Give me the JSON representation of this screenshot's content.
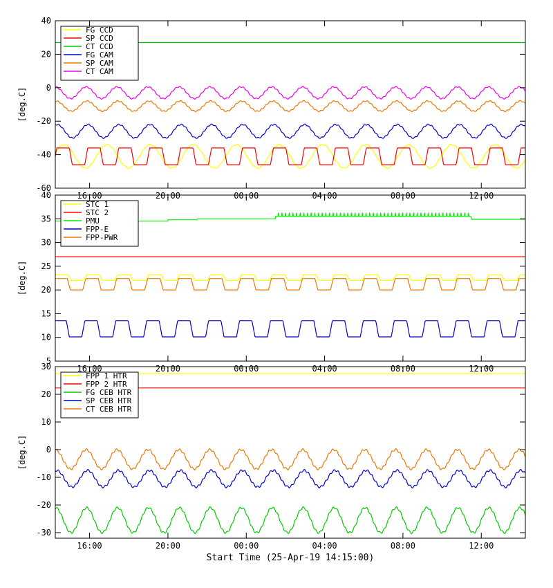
{
  "chart_data": [
    {
      "type": "line",
      "ylabel": "[deg.C]",
      "xlabel": "",
      "ylim": [
        -60,
        40
      ],
      "yticks": [
        40,
        20,
        0,
        -20,
        -40,
        -60
      ],
      "xlim_hours": [
        14.25,
        38.25
      ],
      "xtick_labels": [
        "16:00",
        "20:00",
        "00:00",
        "04:00",
        "08:00",
        "12:00"
      ],
      "legend": "top-left",
      "series": [
        {
          "name": "FG CCD",
          "color": "#ffff00",
          "kind": "osc",
          "mean": -41,
          "amp": 7,
          "period": 2.2,
          "phase": 0.3
        },
        {
          "name": "SP CCD",
          "color": "#ff0000",
          "kind": "step",
          "mean": -41,
          "amp": 5,
          "period": 1.58,
          "phase": 0.0
        },
        {
          "name": "CT CCD",
          "color": "#00cc00",
          "kind": "const",
          "mean": 27
        },
        {
          "name": "FG CAM",
          "color": "#0000cc",
          "kind": "osc",
          "mean": -26,
          "amp": 4,
          "period": 1.58,
          "phase": 1.2
        },
        {
          "name": "SP CAM",
          "color": "#ee7700",
          "kind": "osc",
          "mean": -11,
          "amp": 3,
          "period": 1.58,
          "phase": 1.4
        },
        {
          "name": "CT CAM",
          "color": "#ee00ee",
          "kind": "osc",
          "mean": -3,
          "amp": 3.5,
          "period": 1.58,
          "phase": 1.6
        }
      ]
    },
    {
      "type": "line",
      "ylabel": "[deg.C]",
      "xlabel": "",
      "ylim": [
        5,
        40
      ],
      "yticks": [
        40,
        35,
        30,
        25,
        20,
        15,
        10,
        5
      ],
      "xlim_hours": [
        14.25,
        38.25
      ],
      "xtick_labels": [
        "16:00",
        "20:00",
        "00:00",
        "04:00",
        "08:00",
        "12:00"
      ],
      "legend": "top-left",
      "series": [
        {
          "name": "STC 1",
          "color": "#ffff00",
          "kind": "step",
          "mean": 22.6,
          "amp": 0.6,
          "period": 1.58,
          "phase": 0.2
        },
        {
          "name": "STC 2",
          "color": "#ff0000",
          "kind": "const",
          "mean": 27
        },
        {
          "name": "PMU",
          "color": "#00ee00",
          "kind": "plateau",
          "mean": 35
        },
        {
          "name": "FPP-E",
          "color": "#0000cc",
          "kind": "step",
          "mean": 11.8,
          "amp": 1.7,
          "period": 1.58,
          "phase": 0.6
        },
        {
          "name": "FPP-PWR",
          "color": "#ee7700",
          "kind": "step",
          "mean": 21.2,
          "amp": 1.2,
          "period": 1.58,
          "phase": 0.4
        }
      ]
    },
    {
      "type": "line",
      "ylabel": "[deg.C]",
      "xlabel": "Start Time (25-Apr-19 14:15:00)",
      "ylim": [
        -32,
        30
      ],
      "yticks": [
        30,
        20,
        10,
        0,
        -10,
        -20,
        -30
      ],
      "xlim_hours": [
        14.25,
        38.25
      ],
      "xtick_labels": [
        "16:00",
        "20:00",
        "00:00",
        "04:00",
        "08:00",
        "12:00"
      ],
      "legend": "top-left",
      "series": [
        {
          "name": "FPP 1 HTR",
          "color": "#ffff00",
          "kind": "const",
          "mean": 27.5
        },
        {
          "name": "FPP 2 HTR",
          "color": "#ff0000",
          "kind": "const",
          "mean": 22.3
        },
        {
          "name": "FG CEB HTR",
          "color": "#00cc00",
          "kind": "osc",
          "mean": -25.5,
          "amp": 4.5,
          "period": 1.58,
          "phase": 1.5
        },
        {
          "name": "SP CEB HTR",
          "color": "#0000cc",
          "kind": "osc",
          "mean": -10.5,
          "amp": 3,
          "period": 1.58,
          "phase": 1.3
        },
        {
          "name": "CT CEB HTR",
          "color": "#ee7700",
          "kind": "osc",
          "mean": -3.5,
          "amp": 3.5,
          "period": 1.58,
          "phase": 1.6
        }
      ]
    }
  ]
}
